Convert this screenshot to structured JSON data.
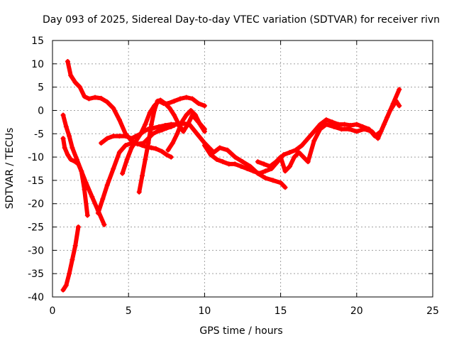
{
  "chart_data": {
    "type": "scatter",
    "title": "Day 093 of 2025, Sidereal Day-to-day VTEC variation (SDTVAR) for receiver rivn",
    "xlabel": "GPS time / hours",
    "ylabel": "SDTVAR / TECUs",
    "xlim": [
      0,
      25
    ],
    "ylim": [
      -40,
      15
    ],
    "x_ticks": [
      0,
      5,
      10,
      15,
      20,
      25
    ],
    "y_ticks": [
      15,
      10,
      5,
      0,
      -5,
      -10,
      -15,
      -20,
      -25,
      -30,
      -35,
      -40
    ],
    "grid": true,
    "marker_color": "#ff0000",
    "series": [
      {
        "x": [
          1.0,
          1.2,
          1.5,
          1.8,
          2.1,
          2.4,
          2.8,
          3.2,
          3.6,
          4.0,
          4.4,
          4.8,
          5.2,
          5.5,
          5.9,
          6.2,
          6.5,
          6.8,
          7.2,
          7.5,
          7.8
        ],
        "y": [
          10.5,
          7.5,
          6.0,
          5.0,
          3.0,
          2.5,
          2.8,
          2.6,
          1.8,
          0.5,
          -2.0,
          -5.0,
          -6.5,
          -7.0,
          -7.5,
          -7.8,
          -8.0,
          -8.2,
          -8.8,
          -9.5,
          -10.0
        ]
      },
      {
        "x": [
          0.7,
          0.9,
          1.1,
          1.3,
          1.6,
          1.9,
          2.2,
          2.6,
          3.0,
          3.4
        ],
        "y": [
          -1.0,
          -3.5,
          -5.5,
          -8.0,
          -10.5,
          -13.0,
          -15.5,
          -18.5,
          -21.5,
          -24.5
        ]
      },
      {
        "x": [
          0.7,
          0.8,
          1.0,
          1.2,
          1.5,
          1.7,
          1.9,
          2.1,
          2.3
        ],
        "y": [
          -6.0,
          -8.0,
          -9.5,
          -10.5,
          -11.0,
          -11.5,
          -13.0,
          -17.0,
          -22.5
        ]
      },
      {
        "x": [
          0.7,
          0.9,
          1.1,
          1.3,
          1.5,
          1.7
        ],
        "y": [
          -38.5,
          -37.5,
          -35.0,
          -32.0,
          -29.0,
          -25.0
        ]
      },
      {
        "x": [
          3.0,
          3.3,
          3.6,
          4.0,
          4.4,
          4.8,
          5.2,
          5.6,
          6.0,
          6.3,
          6.6,
          6.9,
          7.2,
          7.5,
          7.8,
          8.0
        ],
        "y": [
          -22.0,
          -19.0,
          -16.0,
          -12.5,
          -9.0,
          -7.5,
          -7.0,
          -7.2,
          -7.0,
          -6.0,
          -5.0,
          -4.5,
          -4.2,
          -3.8,
          -3.5,
          -3.2
        ]
      },
      {
        "x": [
          3.2,
          3.6,
          4.0,
          4.4,
          4.8,
          5.2,
          5.5,
          5.8,
          6.0,
          6.3,
          6.6,
          7.0,
          7.4,
          7.8,
          8.2,
          8.6,
          9.0,
          9.5,
          10.0,
          10.3,
          10.6,
          11.0,
          11.5,
          12.0,
          12.5,
          13.0,
          13.5,
          14.0,
          14.5,
          15.0,
          15.3
        ],
        "y": [
          -7.0,
          -6.0,
          -5.5,
          -5.5,
          -5.5,
          -6.0,
          -5.5,
          -5.0,
          -4.5,
          -4.0,
          -3.8,
          -3.5,
          -3.2,
          -3.0,
          -3.0,
          -2.8,
          -3.0,
          -5.0,
          -7.0,
          -8.0,
          -9.0,
          -8.0,
          -8.5,
          -10.0,
          -11.0,
          -12.0,
          -13.5,
          -14.5,
          -15.0,
          -15.5,
          -16.5
        ]
      },
      {
        "x": [
          4.6,
          4.9,
          5.2,
          5.5,
          5.8,
          6.1,
          6.4,
          6.7,
          7.0,
          7.3,
          7.6,
          8.0,
          8.4,
          8.8,
          9.2,
          9.6,
          10.0
        ],
        "y": [
          -13.5,
          -10.5,
          -8.0,
          -6.5,
          -5.0,
          -3.0,
          -0.5,
          1.0,
          2.0,
          1.5,
          1.5,
          2.0,
          2.5,
          2.8,
          2.5,
          1.5,
          1.0
        ]
      },
      {
        "x": [
          5.7,
          5.9,
          6.1,
          6.3,
          6.5,
          6.7,
          6.9,
          7.1,
          7.4,
          7.7,
          8.0,
          8.3,
          8.6,
          8.9,
          9.2,
          9.6,
          10.0
        ],
        "y": [
          -17.5,
          -14.0,
          -10.5,
          -7.0,
          -3.0,
          0.0,
          2.0,
          2.2,
          1.5,
          0.5,
          -1.0,
          -3.0,
          -4.5,
          -3.0,
          -1.0,
          -2.5,
          -4.0
        ]
      },
      {
        "x": [
          7.6,
          7.9,
          8.2,
          8.5,
          8.8,
          9.1,
          9.4,
          9.7,
          10.0
        ],
        "y": [
          -8.5,
          -7.0,
          -5.0,
          -2.5,
          -1.0,
          0.0,
          -1.0,
          -3.0,
          -4.5
        ]
      },
      {
        "x": [
          10.0,
          10.4,
          10.8,
          11.2,
          11.6,
          12.0,
          12.4,
          12.8,
          13.2,
          13.6,
          14.0,
          14.4,
          14.8,
          15.2,
          15.6,
          16.0,
          16.4,
          16.8,
          17.2,
          17.6,
          18.0,
          18.4,
          18.8,
          19.2,
          19.6,
          20.0,
          20.4,
          20.8,
          21.2,
          21.6,
          22.0,
          22.4,
          22.8
        ],
        "y": [
          -7.5,
          -9.5,
          -10.5,
          -11.0,
          -11.5,
          -11.5,
          -12.0,
          -12.5,
          -13.0,
          -13.5,
          -13.0,
          -12.5,
          -11.0,
          -9.5,
          -9.0,
          -8.5,
          -7.5,
          -6.0,
          -4.5,
          -3.0,
          -2.0,
          -2.5,
          -3.0,
          -3.0,
          -3.2,
          -3.0,
          -3.5,
          -4.0,
          -5.5,
          -4.5,
          -1.5,
          1.5,
          4.5
        ]
      },
      {
        "x": [
          13.5,
          13.9,
          14.3,
          14.7,
          15.0,
          15.3,
          15.6,
          15.9,
          16.2,
          16.5,
          16.8,
          17.2,
          17.6,
          18.0,
          18.5,
          19.0,
          19.5,
          20.0,
          20.5,
          21.0,
          21.4,
          21.8,
          22.2,
          22.6,
          22.8
        ],
        "y": [
          -11.0,
          -11.5,
          -12.0,
          -11.0,
          -10.0,
          -13.0,
          -12.0,
          -10.0,
          -9.0,
          -10.0,
          -11.0,
          -6.5,
          -4.0,
          -3.0,
          -3.5,
          -4.0,
          -4.0,
          -4.5,
          -4.0,
          -4.5,
          -6.0,
          -3.0,
          0.0,
          2.0,
          1.0
        ]
      }
    ]
  }
}
